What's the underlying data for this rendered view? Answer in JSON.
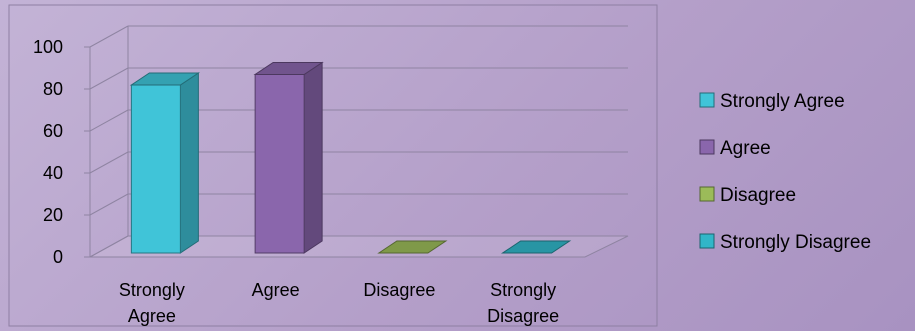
{
  "chart_data": {
    "type": "bar",
    "title": "",
    "xlabel": "",
    "ylabel": "",
    "categories": [
      "Strongly Agree",
      "Agree",
      "Disagree",
      "Strongly Disagree"
    ],
    "values": [
      80,
      85,
      0,
      0
    ],
    "ylim": [
      0,
      100
    ],
    "yticks": [
      "0",
      "20",
      "40",
      "60",
      "80",
      "100"
    ],
    "grid": true,
    "legend": "right",
    "legend_entries": [
      "Strongly Agree",
      "Agree",
      "Disagree",
      "Strongly Disagree"
    ],
    "colors": [
      "#40c4d8",
      "#8a66ac",
      "#9bbb59",
      "#31b6c8"
    ]
  }
}
